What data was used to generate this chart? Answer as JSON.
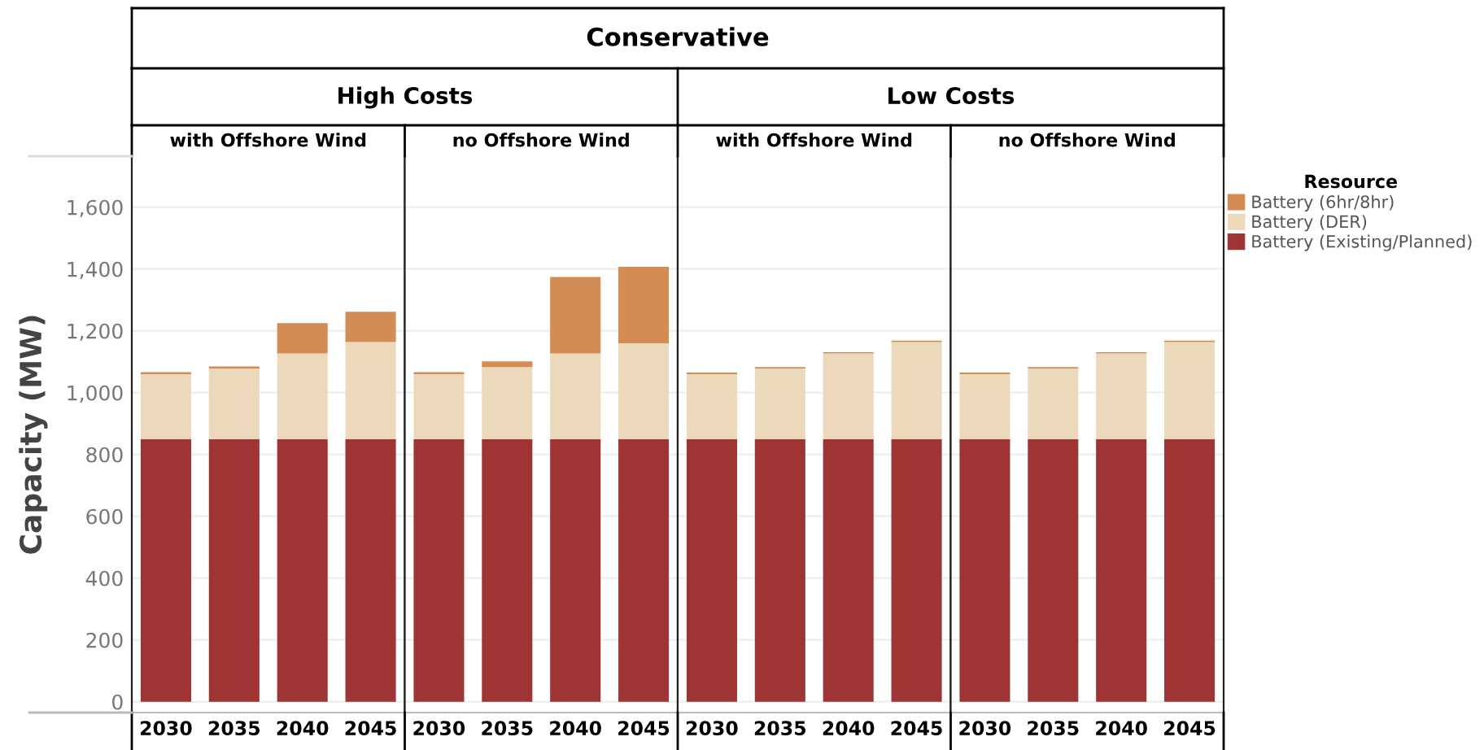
{
  "chart_data": [
    {
      "type": "bar",
      "title": "with Offshore Wind",
      "subtitle": "High Costs",
      "annotations": [
        "Conservative"
      ],
      "ylabel": "Capacity (MW)",
      "stacked": true,
      "grid": "y",
      "legend": "right",
      "legend_title": "Resource",
      "categories": [
        "2030",
        "2035",
        "2040",
        "2045"
      ],
      "ylim": [
        -35,
        1765
      ],
      "yticks": [
        0,
        200,
        400,
        600,
        800,
        {
          "value": 1000,
          "label": "1,000"
        },
        {
          "value": 1200,
          "label": "1,200"
        },
        {
          "value": 1400,
          "label": "1,400"
        },
        {
          "value": 1600,
          "label": "1,600"
        }
      ],
      "series": [
        {
          "name": "Battery (Existing/Planned)",
          "color": "#9e3434",
          "values": [
            850,
            850,
            850,
            850
          ]
        },
        {
          "name": "Battery (DER)",
          "color": "#ecd9bb",
          "values": [
            210,
            228,
            277,
            314
          ]
        },
        {
          "name": "Battery (6hr/8hr)",
          "color": "#d48c55",
          "values": [
            6,
            7,
            98,
            98
          ]
        }
      ]
    },
    {
      "type": "bar",
      "title": "no Offshore Wind",
      "stacked": true,
      "grid": "y",
      "tick_labels": "x",
      "categories": [
        "2030",
        "2035",
        "2040",
        "2045"
      ],
      "ylim": [
        -35,
        1765
      ],
      "yticks": [
        0,
        200,
        400,
        600,
        800,
        1000,
        1200,
        1400,
        1600
      ],
      "series": [
        {
          "color": "#9e3434",
          "values": [
            850,
            850,
            850,
            850
          ]
        },
        {
          "color": "#ecd9bb",
          "values": [
            210,
            233,
            277,
            310
          ]
        },
        {
          "color": "#d48c55",
          "values": [
            6,
            18,
            247,
            247
          ]
        }
      ]
    },
    {
      "type": "bar",
      "title": "with Offshore Wind",
      "subtitle": "Low Costs",
      "stacked": true,
      "grid": "y",
      "tick_labels": "x",
      "categories": [
        "2030",
        "2035",
        "2040",
        "2045"
      ],
      "ylim": [
        -35,
        1765
      ],
      "yticks": [
        0,
        200,
        400,
        600,
        800,
        1000,
        1200,
        1400,
        1600
      ],
      "series": [
        {
          "color": "#9e3434",
          "values": [
            850,
            850,
            850,
            850
          ]
        },
        {
          "color": "#ecd9bb",
          "values": [
            210,
            228,
            277,
            314
          ]
        },
        {
          "color": "#d48c55",
          "values": [
            5,
            5,
            4,
            4
          ]
        }
      ]
    },
    {
      "type": "bar",
      "title": "no Offshore Wind",
      "stacked": true,
      "grid": "y",
      "tick_labels": "x",
      "categories": [
        "2030",
        "2035",
        "2040",
        "2045"
      ],
      "ylim": [
        -35,
        1765
      ],
      "yticks": [
        0,
        200,
        400,
        600,
        800,
        1000,
        1200,
        1400,
        1600
      ],
      "series": [
        {
          "color": "#9e3434",
          "values": [
            850,
            850,
            850,
            850
          ]
        },
        {
          "color": "#ecd9bb",
          "values": [
            210,
            228,
            277,
            314
          ]
        },
        {
          "color": "#d48c55",
          "values": [
            5,
            5,
            4,
            4
          ]
        }
      ]
    }
  ]
}
